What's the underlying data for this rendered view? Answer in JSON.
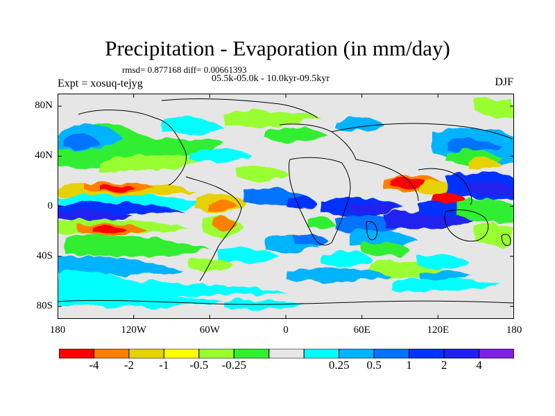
{
  "title": "Precipitation - Evaporation (in mm/day)",
  "stats": "rmsd= 0.877168 diff= 0.00661393",
  "period": "05.5k-05.0k - 10.0kyr-09.5kyr",
  "experiment": "Expt = xosuq-tejyg",
  "season": "DJF",
  "map": {
    "lon_range": [
      -180,
      180
    ],
    "lat_range": [
      -90,
      90
    ],
    "y_ticks": [
      {
        "label": "80N",
        "lat": 80
      },
      {
        "label": "40N",
        "lat": 40
      },
      {
        "label": "0",
        "lat": 0
      },
      {
        "label": "40S",
        "lat": -40
      },
      {
        "label": "80S",
        "lat": -80
      }
    ],
    "x_ticks": [
      {
        "label": "180",
        "lon": -180
      },
      {
        "label": "120W",
        "lon": -120
      },
      {
        "label": "60W",
        "lon": -60
      },
      {
        "label": "0",
        "lon": 0
      },
      {
        "label": "60E",
        "lon": 60
      },
      {
        "label": "120E",
        "lon": 120
      },
      {
        "label": "180",
        "lon": 180
      }
    ],
    "background_color": "#e6e6e6"
  },
  "colorbar": {
    "colors": [
      "#ff0000",
      "#ff8000",
      "#e6d200",
      "#ffff00",
      "#99ff33",
      "#33ee33",
      "#e6e6e6",
      "#00ffff",
      "#00b3ff",
      "#0073ff",
      "#0033ff",
      "#2020ee",
      "#8020e0"
    ],
    "labels": [
      "-4",
      "-2",
      "-1",
      "-0.5",
      "-0.25",
      "0.25",
      "0.5",
      "1",
      "2",
      "4"
    ]
  }
}
